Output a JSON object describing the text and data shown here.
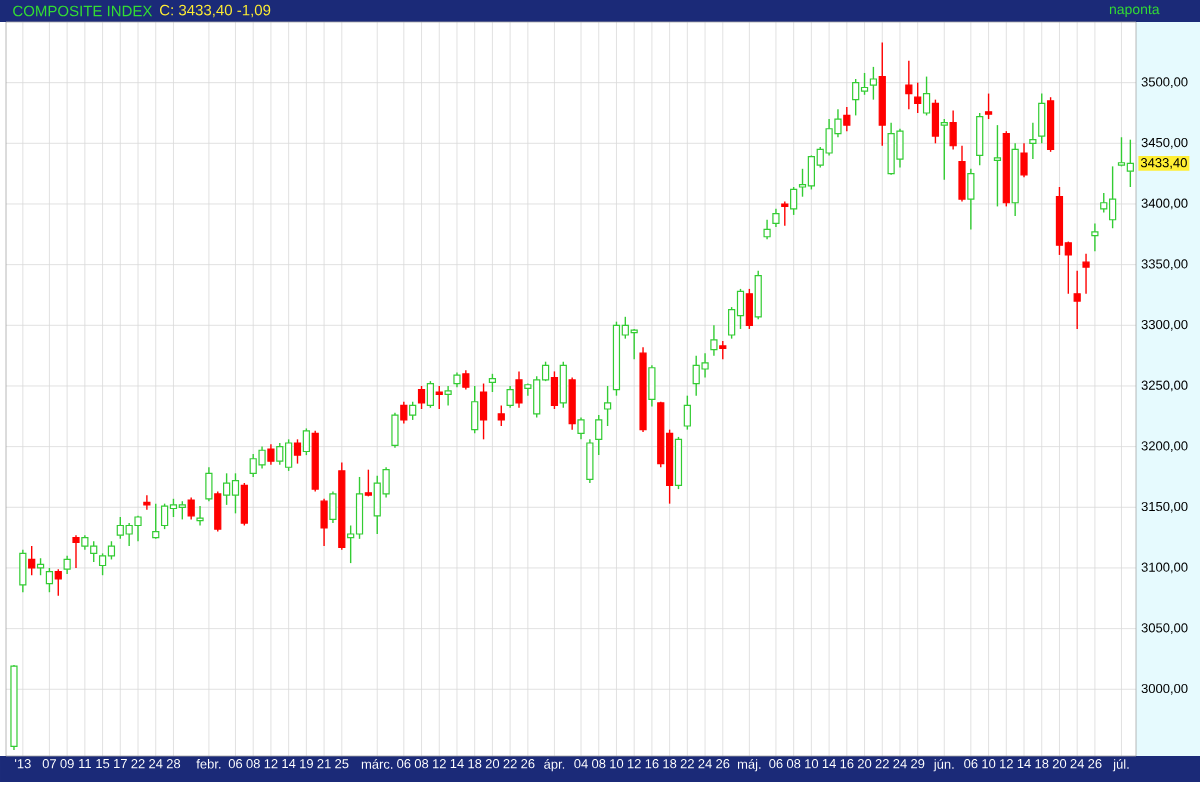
{
  "chart_data": {
    "type": "candlestick",
    "title": "COMPOSITE INDEX",
    "subtitle": "C: 3433,40 -1,09",
    "annotations": [
      "naponta",
      "3433,40"
    ],
    "categories": [
      null,
      "'13",
      null,
      null,
      "07",
      null,
      "09",
      null,
      "11",
      null,
      "15",
      null,
      "17",
      null,
      "22",
      null,
      "24",
      null,
      "28",
      null,
      null,
      null,
      "febr.",
      null,
      null,
      "06",
      null,
      "08",
      null,
      "12",
      null,
      "14",
      null,
      "19",
      null,
      "21",
      null,
      "25",
      null,
      null,
      null,
      "márc.",
      null,
      null,
      "06",
      null,
      "08",
      null,
      "12",
      null,
      "14",
      null,
      "18",
      null,
      "20",
      null,
      "22",
      null,
      "26",
      null,
      null,
      "ápr.",
      null,
      null,
      "04",
      null,
      "08",
      null,
      "10",
      null,
      "12",
      null,
      "16",
      null,
      "18",
      null,
      "22",
      null,
      "24",
      null,
      "26",
      null,
      null,
      "máj.",
      null,
      null,
      "06",
      null,
      "08",
      null,
      "10",
      null,
      "14",
      null,
      "16",
      null,
      "20",
      null,
      "22",
      null,
      "24",
      null,
      "29",
      null,
      null,
      "jún.",
      null,
      null,
      "06",
      null,
      "10",
      null,
      "12",
      null,
      "14",
      null,
      "18",
      null,
      "20",
      null,
      "24",
      null,
      "26",
      null,
      null,
      "júl.",
      null
    ],
    "ohlc": [
      [
        2953,
        3020,
        2950,
        3019
      ],
      [
        3086,
        3115,
        3080,
        3112
      ],
      [
        3107,
        3118,
        3094,
        3100
      ],
      [
        3100,
        3108,
        3094,
        3103
      ],
      [
        3087,
        3100,
        3080,
        3097
      ],
      [
        3097,
        3099,
        3077,
        3091
      ],
      [
        3099,
        3110,
        3095,
        3107
      ],
      [
        3125,
        3127,
        3100,
        3121
      ],
      [
        3118,
        3127,
        3115,
        3125
      ],
      [
        3112,
        3122,
        3105,
        3118
      ],
      [
        3102,
        3112,
        3094,
        3110
      ],
      [
        3110,
        3122,
        3107,
        3118
      ],
      [
        3127,
        3142,
        3124,
        3135
      ],
      [
        3128,
        3137,
        3118,
        3135
      ],
      [
        3135,
        3143,
        3122,
        3142
      ],
      [
        3154,
        3160,
        3148,
        3152
      ],
      [
        3125,
        3153,
        3124,
        3130
      ],
      [
        3135,
        3153,
        3132,
        3151
      ],
      [
        3149,
        3157,
        3142,
        3152
      ],
      [
        3150,
        3155,
        3140,
        3152
      ],
      [
        3156,
        3158,
        3140,
        3143
      ],
      [
        3139,
        3151,
        3135,
        3141
      ],
      [
        3157,
        3183,
        3155,
        3178
      ],
      [
        3161,
        3163,
        3130,
        3132
      ],
      [
        3160,
        3178,
        3152,
        3170
      ],
      [
        3160,
        3178,
        3145,
        3172
      ],
      [
        3168,
        3170,
        3135,
        3137
      ],
      [
        3178,
        3194,
        3175,
        3190
      ],
      [
        3185,
        3200,
        3182,
        3197
      ],
      [
        3198,
        3202,
        3185,
        3188
      ],
      [
        3188,
        3203,
        3185,
        3200
      ],
      [
        3183,
        3206,
        3180,
        3203
      ],
      [
        3203,
        3206,
        3186,
        3193
      ],
      [
        3196,
        3215,
        3193,
        3213
      ],
      [
        3211,
        3213,
        3163,
        3165
      ],
      [
        3155,
        3157,
        3118,
        3133
      ],
      [
        3140,
        3163,
        3137,
        3161
      ],
      [
        3180,
        3187,
        3115,
        3117
      ],
      [
        3125,
        3135,
        3104,
        3128
      ],
      [
        3128,
        3175,
        3124,
        3161
      ],
      [
        3162,
        3181,
        3159,
        3160
      ],
      [
        3143,
        3176,
        3128,
        3170
      ],
      [
        3161,
        3183,
        3158,
        3181
      ],
      [
        3201,
        3228,
        3199,
        3226
      ],
      [
        3234,
        3237,
        3219,
        3222
      ],
      [
        3226,
        3237,
        3222,
        3234
      ],
      [
        3247,
        3250,
        3231,
        3236
      ],
      [
        3234,
        3254,
        3232,
        3252
      ],
      [
        3245,
        3250,
        3231,
        3243
      ],
      [
        3243,
        3250,
        3234,
        3246
      ],
      [
        3252,
        3261,
        3249,
        3259
      ],
      [
        3260,
        3263,
        3247,
        3249
      ],
      [
        3214,
        3250,
        3211,
        3237
      ],
      [
        3245,
        3252,
        3206,
        3222
      ],
      [
        3253,
        3260,
        3245,
        3256
      ],
      [
        3227,
        3234,
        3217,
        3222
      ],
      [
        3234,
        3250,
        3232,
        3247
      ],
      [
        3255,
        3262,
        3232,
        3236
      ],
      [
        3248,
        3252,
        3242,
        3251
      ],
      [
        3227,
        3258,
        3224,
        3255
      ],
      [
        3255,
        3270,
        3254,
        3267
      ],
      [
        3257,
        3262,
        3231,
        3234
      ],
      [
        3236,
        3270,
        3232,
        3267
      ],
      [
        3255,
        3257,
        3214,
        3219
      ],
      [
        3211,
        3224,
        3206,
        3222
      ],
      [
        3173,
        3206,
        3170,
        3203
      ],
      [
        3206,
        3226,
        3193,
        3222
      ],
      [
        3231,
        3250,
        3217,
        3236
      ],
      [
        3247,
        3303,
        3242,
        3300
      ],
      [
        3292,
        3307,
        3289,
        3300
      ],
      [
        3294,
        3297,
        3272,
        3296
      ],
      [
        3277,
        3282,
        3212,
        3214
      ],
      [
        3239,
        3267,
        3233,
        3265
      ],
      [
        3236,
        3237,
        3183,
        3186
      ],
      [
        3211,
        3214,
        3153,
        3168
      ],
      [
        3168,
        3208,
        3165,
        3206
      ],
      [
        3217,
        3242,
        3214,
        3234
      ],
      [
        3252,
        3275,
        3242,
        3267
      ],
      [
        3264,
        3277,
        3257,
        3269
      ],
      [
        3280,
        3300,
        3275,
        3288
      ],
      [
        3283,
        3287,
        3272,
        3281
      ],
      [
        3292,
        3315,
        3289,
        3313
      ],
      [
        3308,
        3330,
        3297,
        3328
      ],
      [
        3326,
        3330,
        3297,
        3300
      ],
      [
        3307,
        3345,
        3305,
        3341
      ],
      [
        3373,
        3387,
        3371,
        3379
      ],
      [
        3384,
        3396,
        3381,
        3392
      ],
      [
        3400,
        3402,
        3382,
        3398
      ],
      [
        3396,
        3414,
        3391,
        3412
      ],
      [
        3414,
        3429,
        3406,
        3416
      ],
      [
        3415,
        3440,
        3412,
        3439
      ],
      [
        3432,
        3447,
        3430,
        3445
      ],
      [
        3442,
        3470,
        3440,
        3462
      ],
      [
        3458,
        3478,
        3455,
        3470
      ],
      [
        3473,
        3480,
        3460,
        3465
      ],
      [
        3486,
        3503,
        3473,
        3500
      ],
      [
        3493,
        3508,
        3490,
        3496
      ],
      [
        3498,
        3513,
        3486,
        3503
      ],
      [
        3505,
        3533,
        3448,
        3465
      ],
      [
        3425,
        3467,
        3424,
        3458
      ],
      [
        3437,
        3462,
        3430,
        3460
      ],
      [
        3498,
        3518,
        3478,
        3491
      ],
      [
        3488,
        3500,
        3475,
        3483
      ],
      [
        3475,
        3505,
        3473,
        3491
      ],
      [
        3483,
        3486,
        3450,
        3456
      ],
      [
        3465,
        3470,
        3420,
        3467
      ],
      [
        3467,
        3477,
        3445,
        3448
      ],
      [
        3435,
        3448,
        3402,
        3404
      ],
      [
        3404,
        3429,
        3379,
        3425
      ],
      [
        3440,
        3475,
        3432,
        3472
      ],
      [
        3476,
        3491,
        3470,
        3474
      ],
      [
        3436,
        3465,
        3398,
        3438
      ],
      [
        3458,
        3460,
        3398,
        3401
      ],
      [
        3401,
        3450,
        3390,
        3445
      ],
      [
        3442,
        3450,
        3422,
        3424
      ],
      [
        3450,
        3467,
        3437,
        3453
      ],
      [
        3456,
        3491,
        3450,
        3483
      ],
      [
        3485,
        3488,
        3443,
        3445
      ],
      [
        3406,
        3414,
        3358,
        3366
      ],
      [
        3368,
        3369,
        3326,
        3358
      ],
      [
        3326,
        3345,
        3297,
        3320
      ],
      [
        3352,
        3359,
        3326,
        3348
      ],
      [
        3374,
        3384,
        3361,
        3377
      ],
      [
        3396,
        3409,
        3393,
        3401
      ],
      [
        3387,
        3431,
        3380,
        3404
      ],
      [
        3432,
        3455,
        3431,
        3434
      ],
      [
        3427,
        3453,
        3414,
        3433.4
      ]
    ],
    "colors": [
      "#33cc33",
      "#33cc33",
      "#ff0000",
      "#33cc33",
      "#33cc33",
      "#ff0000",
      "#33cc33",
      "#ff0000",
      "#33cc33",
      "#33cc33",
      "#33cc33",
      "#33cc33",
      "#33cc33",
      "#33cc33",
      "#33cc33",
      "#ff0000",
      "#33cc33",
      "#33cc33",
      "#33cc33",
      "#33cc33",
      "#ff0000",
      "#33cc33",
      "#33cc33",
      "#ff0000",
      "#33cc33",
      "#33cc33",
      "#ff0000",
      "#33cc33",
      "#33cc33",
      "#ff0000",
      "#33cc33",
      "#33cc33",
      "#ff0000",
      "#33cc33",
      "#ff0000",
      "#ff0000",
      "#33cc33",
      "#ff0000",
      "#33cc33",
      "#33cc33",
      "#ff0000",
      "#33cc33",
      "#33cc33",
      "#33cc33",
      "#ff0000",
      "#33cc33",
      "#ff0000",
      "#33cc33",
      "#ff0000",
      "#33cc33",
      "#33cc33",
      "#ff0000",
      "#33cc33",
      "#ff0000",
      "#33cc33",
      "#ff0000",
      "#33cc33",
      "#ff0000",
      "#33cc33",
      "#33cc33",
      "#33cc33",
      "#ff0000",
      "#33cc33",
      "#ff0000",
      "#33cc33",
      "#33cc33",
      "#33cc33",
      "#33cc33",
      "#33cc33",
      "#33cc33",
      "#33cc33",
      "#ff0000",
      "#33cc33",
      "#ff0000",
      "#ff0000",
      "#33cc33",
      "#33cc33",
      "#33cc33",
      "#33cc33",
      "#33cc33",
      "#ff0000",
      "#33cc33",
      "#33cc33",
      "#ff0000",
      "#33cc33",
      "#33cc33",
      "#33cc33",
      "#ff0000",
      "#33cc33",
      "#33cc33",
      "#33cc33",
      "#33cc33",
      "#33cc33",
      "#33cc33",
      "#ff0000",
      "#33cc33",
      "#33cc33",
      "#33cc33",
      "#ff0000",
      "#33cc33",
      "#33cc33",
      "#ff0000",
      "#ff0000",
      "#33cc33",
      "#ff0000",
      "#33cc33",
      "#ff0000",
      "#ff0000",
      "#33cc33",
      "#33cc33",
      "#ff0000",
      "#33cc33",
      "#ff0000",
      "#33cc33",
      "#ff0000",
      "#33cc33",
      "#33cc33",
      "#ff0000",
      "#ff0000",
      "#ff0000",
      "#ff0000",
      "#ff0000",
      "#33cc33",
      "#33cc33",
      "#33cc33",
      "#33cc33",
      "#33cc33"
    ],
    "ylim": [
      2945,
      3550
    ],
    "yticks": [
      {
        "value": 3000,
        "label": "3000,00"
      },
      {
        "value": 3050,
        "label": "3050,00"
      },
      {
        "value": 3100,
        "label": "3100,00"
      },
      {
        "value": 3150,
        "label": "3150,00"
      },
      {
        "value": 3200,
        "label": "3200,00"
      },
      {
        "value": 3250,
        "label": "3250,00"
      },
      {
        "value": 3300,
        "label": "3300,00"
      },
      {
        "value": 3350,
        "label": "3350,00"
      },
      {
        "value": 3400,
        "label": "3400,00"
      },
      {
        "value": 3450,
        "label": "3450,00"
      },
      {
        "value": 3500,
        "label": "3500,00"
      }
    ],
    "grid": true
  }
}
